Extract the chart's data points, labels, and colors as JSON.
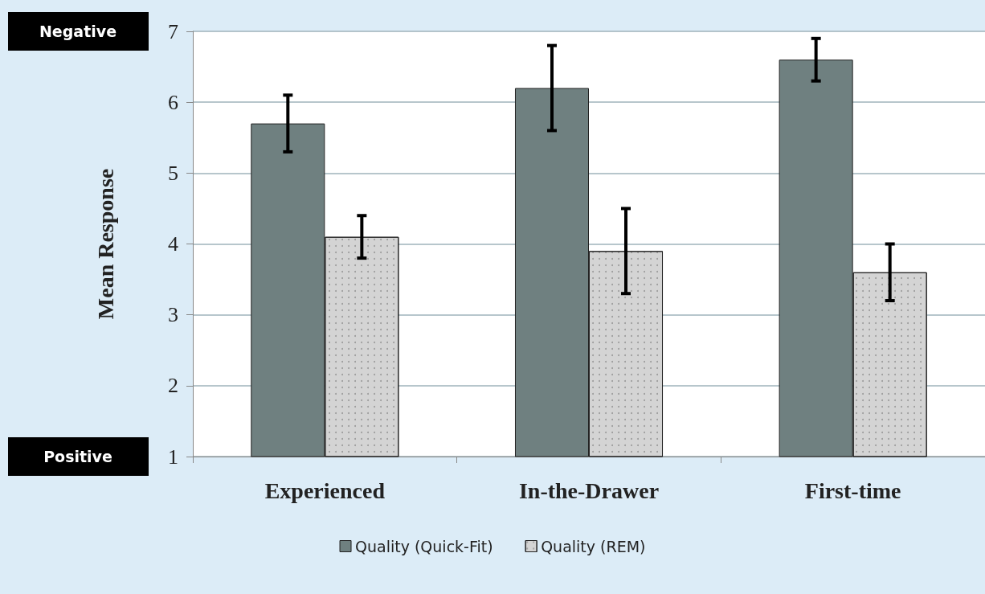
{
  "chart_data": {
    "type": "bar",
    "ylabel": "Mean Response",
    "categories": [
      "Experienced",
      "In-the-Drawer",
      "First-time"
    ],
    "series": [
      {
        "name": "Quality (Quick-Fit)",
        "color": "#6f8080",
        "values": [
          5.7,
          6.2,
          6.6
        ],
        "errors": [
          0.4,
          0.6,
          0.3
        ]
      },
      {
        "name": "Quality (REM)",
        "color": "#d4d4d4",
        "values": [
          4.1,
          3.9,
          3.6
        ],
        "errors": [
          0.3,
          0.6,
          0.4
        ]
      }
    ],
    "ylim": [
      1,
      7
    ],
    "yticks": [
      1,
      2,
      3,
      4,
      5,
      6,
      7
    ],
    "grid": "y",
    "legend": "bottom",
    "annotations": [
      "Negative",
      "Positive"
    ]
  }
}
